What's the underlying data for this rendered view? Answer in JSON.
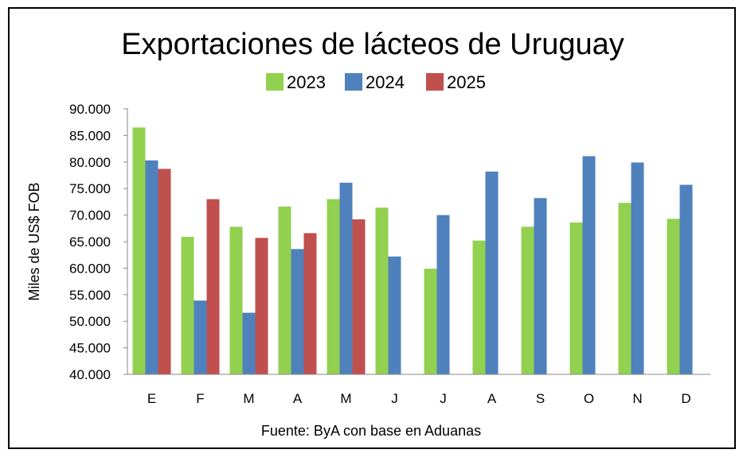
{
  "chart_data": {
    "type": "bar",
    "title": "Exportaciones de lácteos de Uruguay",
    "ylabel": "Miles de US$ FOB",
    "xlabel": "",
    "source": "Fuente: ByA con base en Aduanas",
    "ylim": [
      40000,
      90000
    ],
    "yticks": [
      "90.000",
      "85.000",
      "80.000",
      "75.000",
      "70.000",
      "65.000",
      "60.000",
      "55.000",
      "50.000",
      "45.000",
      "40.000"
    ],
    "categories": [
      "E",
      "F",
      "M",
      "A",
      "M",
      "J",
      "J",
      "A",
      "S",
      "O",
      "N",
      "D"
    ],
    "legend_position": "top",
    "grid": false,
    "series": [
      {
        "name": "2023",
        "color": "#92d050",
        "values": [
          86500,
          65900,
          67800,
          71600,
          73000,
          71400,
          59900,
          65200,
          67800,
          68600,
          72300,
          69300
        ]
      },
      {
        "name": "2024",
        "color": "#4f81bd",
        "values": [
          80300,
          53900,
          51600,
          63600,
          76100,
          62200,
          70000,
          78200,
          73200,
          81100,
          79900,
          75700
        ]
      },
      {
        "name": "2025",
        "color": "#c0504d",
        "values": [
          78700,
          73000,
          65700,
          66600,
          69200,
          null,
          null,
          null,
          null,
          null,
          null,
          null
        ]
      }
    ]
  }
}
